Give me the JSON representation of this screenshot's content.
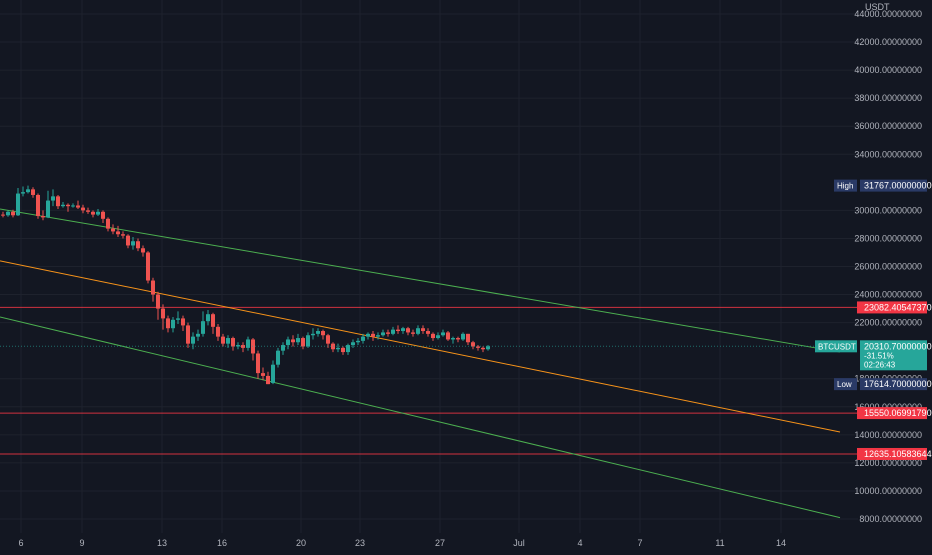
{
  "chart_data": {
    "type": "candlestick",
    "symbol": "BTCUSDT",
    "currency_label": "USDT",
    "grid": true,
    "x_tick_labels": [
      "6",
      "9",
      "13",
      "16",
      "20",
      "23",
      "27",
      "Jul",
      "4",
      "7",
      "11",
      "14"
    ],
    "y_tick_labels": [
      "44000.00000000",
      "42000.00000000",
      "40000.00000000",
      "38000.00000000",
      "36000.00000000",
      "34000.00000000",
      "30000.00000000",
      "28000.00000000",
      "26000.00000000",
      "24000.00000000",
      "22000.00000000",
      "18000.00000000",
      "16000.00000000",
      "14000.00000000",
      "12000.00000000",
      "10000.00000000",
      "8000.00000000"
    ],
    "y_tick_values": [
      44000,
      42000,
      40000,
      38000,
      36000,
      34000,
      30000,
      28000,
      26000,
      24000,
      22000,
      18000,
      16000,
      14000,
      12000,
      10000,
      8000
    ],
    "ylim": [
      7600,
      44500
    ],
    "candles": [
      [
        29700,
        29650,
        29900,
        29500
      ],
      [
        29650,
        29900,
        30000,
        29550
      ],
      [
        29900,
        29650,
        30050,
        29500
      ],
      [
        29650,
        31200,
        31600,
        29600
      ],
      [
        31200,
        31300,
        31700,
        31000
      ],
      [
        31300,
        31500,
        31767,
        31200
      ],
      [
        31500,
        31100,
        31650,
        30900
      ],
      [
        31100,
        29600,
        31200,
        29400
      ],
      [
        29600,
        29500,
        30000,
        29300
      ],
      [
        29500,
        30700,
        31400,
        29450
      ],
      [
        30700,
        31000,
        31500,
        30300
      ],
      [
        31000,
        30300,
        31100,
        30100
      ],
      [
        30300,
        30400,
        30600,
        30200
      ],
      [
        30400,
        30300,
        30500,
        29900
      ],
      [
        30300,
        30350,
        30500,
        30200
      ],
      [
        30350,
        30200,
        30700,
        30100
      ],
      [
        30200,
        30000,
        30400,
        29800
      ],
      [
        30000,
        29900,
        30200,
        29750
      ],
      [
        29900,
        29700,
        30000,
        29500
      ],
      [
        29700,
        29900,
        30100,
        29600
      ],
      [
        29900,
        29400,
        30000,
        29100
      ],
      [
        29400,
        28700,
        29500,
        28500
      ],
      [
        28700,
        28500,
        29000,
        28300
      ],
      [
        28500,
        28300,
        28900,
        28100
      ],
      [
        28300,
        28200,
        28500,
        28000
      ],
      [
        28200,
        27500,
        28300,
        27300
      ],
      [
        27500,
        27800,
        28100,
        27200
      ],
      [
        27800,
        27300,
        28000,
        27100
      ],
      [
        27300,
        27000,
        27500,
        26700
      ],
      [
        27000,
        25000,
        27100,
        24800
      ],
      [
        25000,
        24000,
        25200,
        23500
      ],
      [
        24000,
        23000,
        24200,
        22200
      ],
      [
        23000,
        22300,
        23300,
        21500
      ],
      [
        22300,
        21600,
        22500,
        21300
      ],
      [
        21600,
        22200,
        22400,
        21300
      ],
      [
        22200,
        22300,
        22800,
        21900
      ],
      [
        22300,
        21800,
        22500,
        21400
      ],
      [
        21800,
        20500,
        22000,
        20200
      ],
      [
        20500,
        21000,
        21300,
        20100
      ],
      [
        21000,
        21200,
        21500,
        20700
      ],
      [
        21200,
        22100,
        22800,
        21000
      ],
      [
        22100,
        22600,
        22900,
        21800
      ],
      [
        22600,
        21700,
        22700,
        21200
      ],
      [
        21700,
        21000,
        21900,
        20700
      ],
      [
        21000,
        20500,
        21200,
        20300
      ],
      [
        20500,
        20900,
        21100,
        20200
      ],
      [
        20900,
        20300,
        21000,
        20000
      ],
      [
        20300,
        20400,
        20600,
        20100
      ],
      [
        20400,
        20200,
        20600,
        19900
      ],
      [
        20200,
        20800,
        21000,
        20000
      ],
      [
        20800,
        19800,
        20900,
        19300
      ],
      [
        19800,
        18400,
        20000,
        18000
      ],
      [
        18400,
        18200,
        18800,
        17900
      ],
      [
        18200,
        17614,
        18500,
        17614
      ],
      [
        17700,
        19000,
        19300,
        17614
      ],
      [
        19000,
        20000,
        20200,
        18800
      ],
      [
        20000,
        20400,
        20600,
        19700
      ],
      [
        20400,
        20800,
        21000,
        20100
      ],
      [
        20800,
        20600,
        21100,
        20300
      ],
      [
        20600,
        20900,
        21200,
        20400
      ],
      [
        20900,
        20300,
        21000,
        20100
      ],
      [
        20300,
        21100,
        21300,
        20200
      ],
      [
        21100,
        21200,
        21600,
        20800
      ],
      [
        21200,
        21400,
        21600,
        21000
      ],
      [
        21400,
        21100,
        21500,
        20800
      ],
      [
        21100,
        20500,
        21200,
        20200
      ],
      [
        20500,
        20100,
        20600,
        19900
      ],
      [
        20100,
        20200,
        20500,
        19900
      ],
      [
        20200,
        19900,
        20300,
        19700
      ],
      [
        19900,
        20400,
        20500,
        19700
      ],
      [
        20400,
        20600,
        20800,
        20200
      ],
      [
        20600,
        20700,
        20900,
        20400
      ],
      [
        20700,
        21000,
        21200,
        20500
      ],
      [
        21000,
        21200,
        21300,
        20800
      ],
      [
        21200,
        21000,
        21400,
        20700
      ],
      [
        21000,
        21100,
        21300,
        20800
      ],
      [
        21100,
        21300,
        21500,
        21000
      ],
      [
        21300,
        21200,
        21500,
        21000
      ],
      [
        21200,
        21500,
        21700,
        21100
      ],
      [
        21500,
        21400,
        21800,
        21200
      ],
      [
        21400,
        21600,
        21700,
        21200
      ],
      [
        21600,
        21300,
        21700,
        21100
      ],
      [
        21300,
        21200,
        21500,
        21000
      ],
      [
        21200,
        21600,
        21800,
        21100
      ],
      [
        21600,
        21400,
        21800,
        21200
      ],
      [
        21400,
        21200,
        21600,
        21000
      ],
      [
        21200,
        20900,
        21300,
        20700
      ],
      [
        20900,
        21100,
        21300,
        20800
      ],
      [
        21100,
        21300,
        21500,
        21000
      ],
      [
        21300,
        20800,
        21400,
        20700
      ],
      [
        20800,
        20900,
        21000,
        20500
      ],
      [
        20900,
        20800,
        21000,
        20600
      ],
      [
        20800,
        21200,
        21300,
        20700
      ],
      [
        21200,
        20600,
        21200,
        20400
      ],
      [
        20600,
        20300,
        20700,
        20100
      ],
      [
        20300,
        20200,
        20400,
        20000
      ],
      [
        20200,
        20100,
        20300,
        19900
      ],
      [
        20100,
        20311,
        20400,
        20000
      ]
    ],
    "horizontal_levels": [
      {
        "value": 23082.4054737,
        "label": "23082.40547370",
        "color": "#f23645"
      },
      {
        "value": 15550.0699179,
        "label": "15550.06991790",
        "color": "#f23645"
      },
      {
        "value": 12635.10583644,
        "label": "12635.10583644",
        "color": "#f23645"
      }
    ],
    "trend_lines": [
      {
        "color": "#4caf50",
        "points": [
          [
            0,
            30100
          ],
          [
            840,
            19900
          ]
        ]
      },
      {
        "color": "#f7931a",
        "points": [
          [
            0,
            26400
          ],
          [
            840,
            14200
          ]
        ]
      },
      {
        "color": "#4caf50",
        "points": [
          [
            0,
            22400
          ],
          [
            840,
            8100
          ]
        ]
      }
    ],
    "high": {
      "tag": "High",
      "value": 31767,
      "value_label": "31767.00000000",
      "color": "#2a3a66"
    },
    "low": {
      "tag": "Low",
      "value": 17614.7,
      "value_label": "17614.70000000",
      "color": "#2a3a66"
    },
    "last_price": {
      "symbol": "BTCUSDT",
      "value": 20310.7,
      "value_label": "20310.70000000",
      "change": "-31.51%",
      "countdown": "02:26:43",
      "color": "#26a69a"
    },
    "colors": {
      "up": "#26a69a",
      "down": "#ef5350",
      "background": "#131722",
      "grid": "#1e222d"
    }
  }
}
